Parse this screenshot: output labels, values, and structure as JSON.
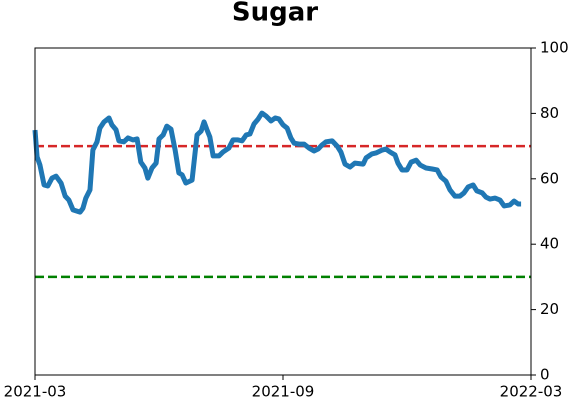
{
  "chart_data": {
    "type": "line",
    "title": "Sugar",
    "x": [
      0,
      0.05,
      0.12,
      0.22,
      0.31,
      0.41,
      0.51,
      0.63,
      0.73,
      0.82,
      0.92,
      1.09,
      1.16,
      1.23,
      1.33,
      1.4,
      1.5,
      1.57,
      1.67,
      1.79,
      1.86,
      1.96,
      2.03,
      2.15,
      2.25,
      2.37,
      2.47,
      2.56,
      2.66,
      2.73,
      2.83,
      2.93,
      3,
      3.1,
      3.19,
      3.29,
      3.39,
      3.48,
      3.56,
      3.65,
      3.8,
      3.92,
      4.02,
      4.09,
      4.16,
      4.23,
      4.31,
      4.45,
      4.55,
      4.69,
      4.79,
      4.91,
      5.01,
      5.11,
      5.2,
      5.3,
      5.4,
      5.49,
      5.59,
      5.71,
      5.81,
      5.9,
      6,
      6.1,
      6.19,
      6.27,
      6.39,
      6.51,
      6.63,
      6.75,
      6.85,
      6.94,
      7.04,
      7.19,
      7.31,
      7.4,
      7.5,
      7.62,
      7.74,
      7.94,
      8.01,
      8.15,
      8.25,
      8.4,
      8.49,
      8.59,
      8.71,
      8.78,
      8.88,
      9,
      9.1,
      9.22,
      9.32,
      9.46,
      9.61,
      9.73,
      9.82,
      9.94,
      10.04,
      10.16,
      10.28,
      10.38,
      10.48,
      10.6,
      10.69,
      10.82,
      10.91,
      11.01,
      11.13,
      11.25,
      11.35,
      11.49,
      11.59,
      11.69,
      11.76
    ],
    "series": [
      {
        "color": "#1f77b4",
        "values": [
          74.9,
          66.7,
          64.2,
          58.1,
          57.8,
          60.2,
          60.8,
          58.7,
          54.7,
          53.5,
          50.5,
          49.8,
          51,
          54.1,
          56.6,
          68.8,
          71.3,
          75.5,
          77.4,
          78.6,
          76.5,
          75,
          71.6,
          71.3,
          72.5,
          71.9,
          72.2,
          65.1,
          63.3,
          60.2,
          63.3,
          64.8,
          72.2,
          73.4,
          76.1,
          75.2,
          68.8,
          61.8,
          61.2,
          58.7,
          59.6,
          73.4,
          74.6,
          77.4,
          75,
          72.8,
          67,
          67,
          68.2,
          69.4,
          71.9,
          71.9,
          71.6,
          73.4,
          73.7,
          76.8,
          78.3,
          80.1,
          79.2,
          77.7,
          78.6,
          78.3,
          76.5,
          75.5,
          72.5,
          70.9,
          70.6,
          70.6,
          69.4,
          68.5,
          69.1,
          70.3,
          71.3,
          71.6,
          70,
          68.2,
          64.5,
          63.6,
          64.8,
          64.5,
          66.4,
          67.6,
          67.9,
          68.8,
          69.1,
          68.2,
          67.3,
          64.8,
          62.7,
          62.7,
          65.1,
          65.7,
          64.2,
          63.3,
          63,
          62.7,
          60.6,
          59.3,
          56.6,
          54.7,
          54.7,
          55.7,
          57.5,
          58.1,
          56.3,
          55.7,
          54.4,
          53.8,
          54.1,
          53.5,
          51.7,
          52,
          53.2,
          52.3,
          52.3
        ]
      }
    ],
    "hlines": [
      {
        "value": 70,
        "color": "#d62728"
      },
      {
        "value": 30,
        "color": "#008000"
      }
    ],
    "xlim": [
      0,
      12
    ],
    "xticks": [
      {
        "value": 0,
        "label": "2021-03"
      },
      {
        "value": 6,
        "label": "2021-09"
      },
      {
        "value": 12,
        "label": "2022-03"
      }
    ],
    "ylim": [
      0,
      100
    ],
    "yticks": [
      0,
      20,
      40,
      60,
      80,
      100
    ],
    "yaxis_side": "right",
    "grid": false
  }
}
